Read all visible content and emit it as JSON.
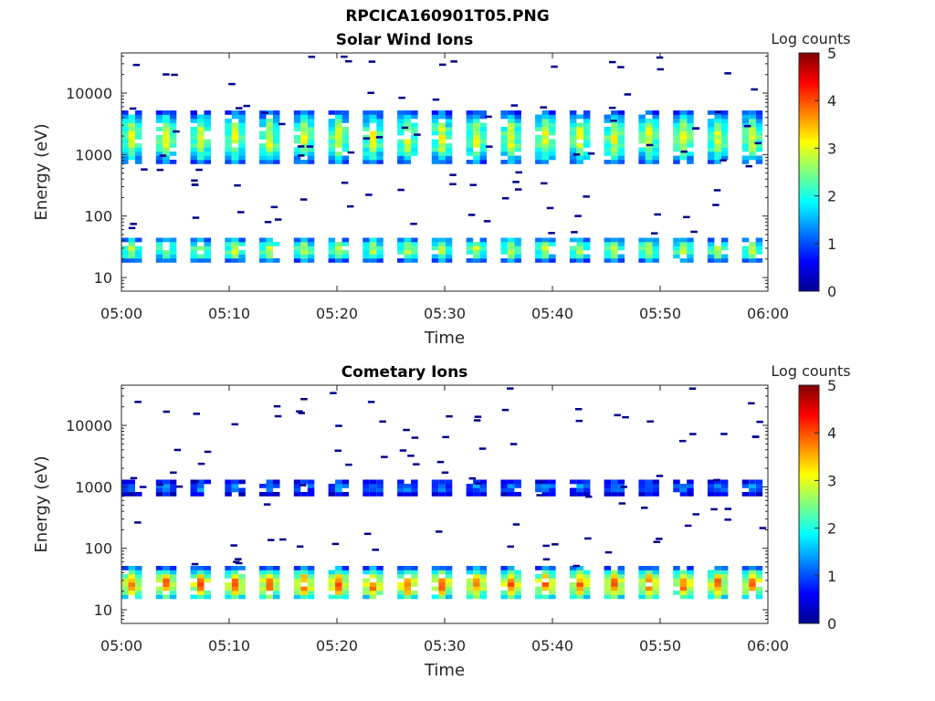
{
  "figure_title": "RPCICA160901T05.PNG",
  "colorbar_scale": {
    "from": "#00008f",
    "via": [
      "#0000ff",
      "#00ffff",
      "#ffff00",
      "#ff0000"
    ],
    "to": "#800000"
  },
  "chart_data": [
    {
      "type": "heatmap",
      "title": "Solar Wind Ions",
      "xlabel": "Time",
      "ylabel": "Energy (eV)",
      "yscale": "log",
      "ylim": [
        6,
        45000
      ],
      "xlim": [
        "05:00",
        "06:00"
      ],
      "xticks": [
        "05:00",
        "05:10",
        "05:20",
        "05:30",
        "05:40",
        "05:50",
        "06:00"
      ],
      "yticks": [
        10,
        100,
        1000,
        10000
      ],
      "yticklabels": [
        "10",
        "100",
        "1000",
        "10000"
      ],
      "colorbar": {
        "label": "Log counts",
        "range": [
          0,
          5
        ],
        "ticks": [
          "0",
          "1",
          "2",
          "3",
          "4",
          "5"
        ]
      },
      "sweep_start_minutes": [
        0.0,
        3.2,
        6.4,
        9.6,
        12.8,
        16.0,
        19.2,
        22.4,
        25.6,
        28.8,
        32.0,
        35.2,
        38.4,
        41.6,
        44.8,
        48.0,
        51.2,
        54.4,
        57.6
      ],
      "bands": [
        {
          "emin": 700,
          "emax": 5000,
          "peak": 3.0
        },
        {
          "emin": 18,
          "emax": 45,
          "peak": 2.8
        }
      ]
    },
    {
      "type": "heatmap",
      "title": "Cometary Ions",
      "xlabel": "Time",
      "ylabel": "Energy (eV)",
      "yscale": "log",
      "ylim": [
        6,
        45000
      ],
      "xlim": [
        "05:00",
        "06:00"
      ],
      "xticks": [
        "05:00",
        "05:10",
        "05:20",
        "05:30",
        "05:40",
        "05:50",
        "06:00"
      ],
      "yticks": [
        10,
        100,
        1000,
        10000
      ],
      "yticklabels": [
        "10",
        "100",
        "1000",
        "10000"
      ],
      "colorbar": {
        "label": "Log counts",
        "range": [
          0,
          5
        ],
        "ticks": [
          "0",
          "1",
          "2",
          "3",
          "4",
          "5"
        ]
      },
      "sweep_start_minutes": [
        0.0,
        3.2,
        6.4,
        9.6,
        12.8,
        16.0,
        19.2,
        22.4,
        25.6,
        28.8,
        32.0,
        35.2,
        38.4,
        41.6,
        44.8,
        48.0,
        51.2,
        54.4,
        57.6
      ],
      "bands": [
        {
          "emin": 750,
          "emax": 1300,
          "peak": 1.3
        },
        {
          "emin": 14,
          "emax": 48,
          "peak": 3.8
        }
      ]
    }
  ]
}
